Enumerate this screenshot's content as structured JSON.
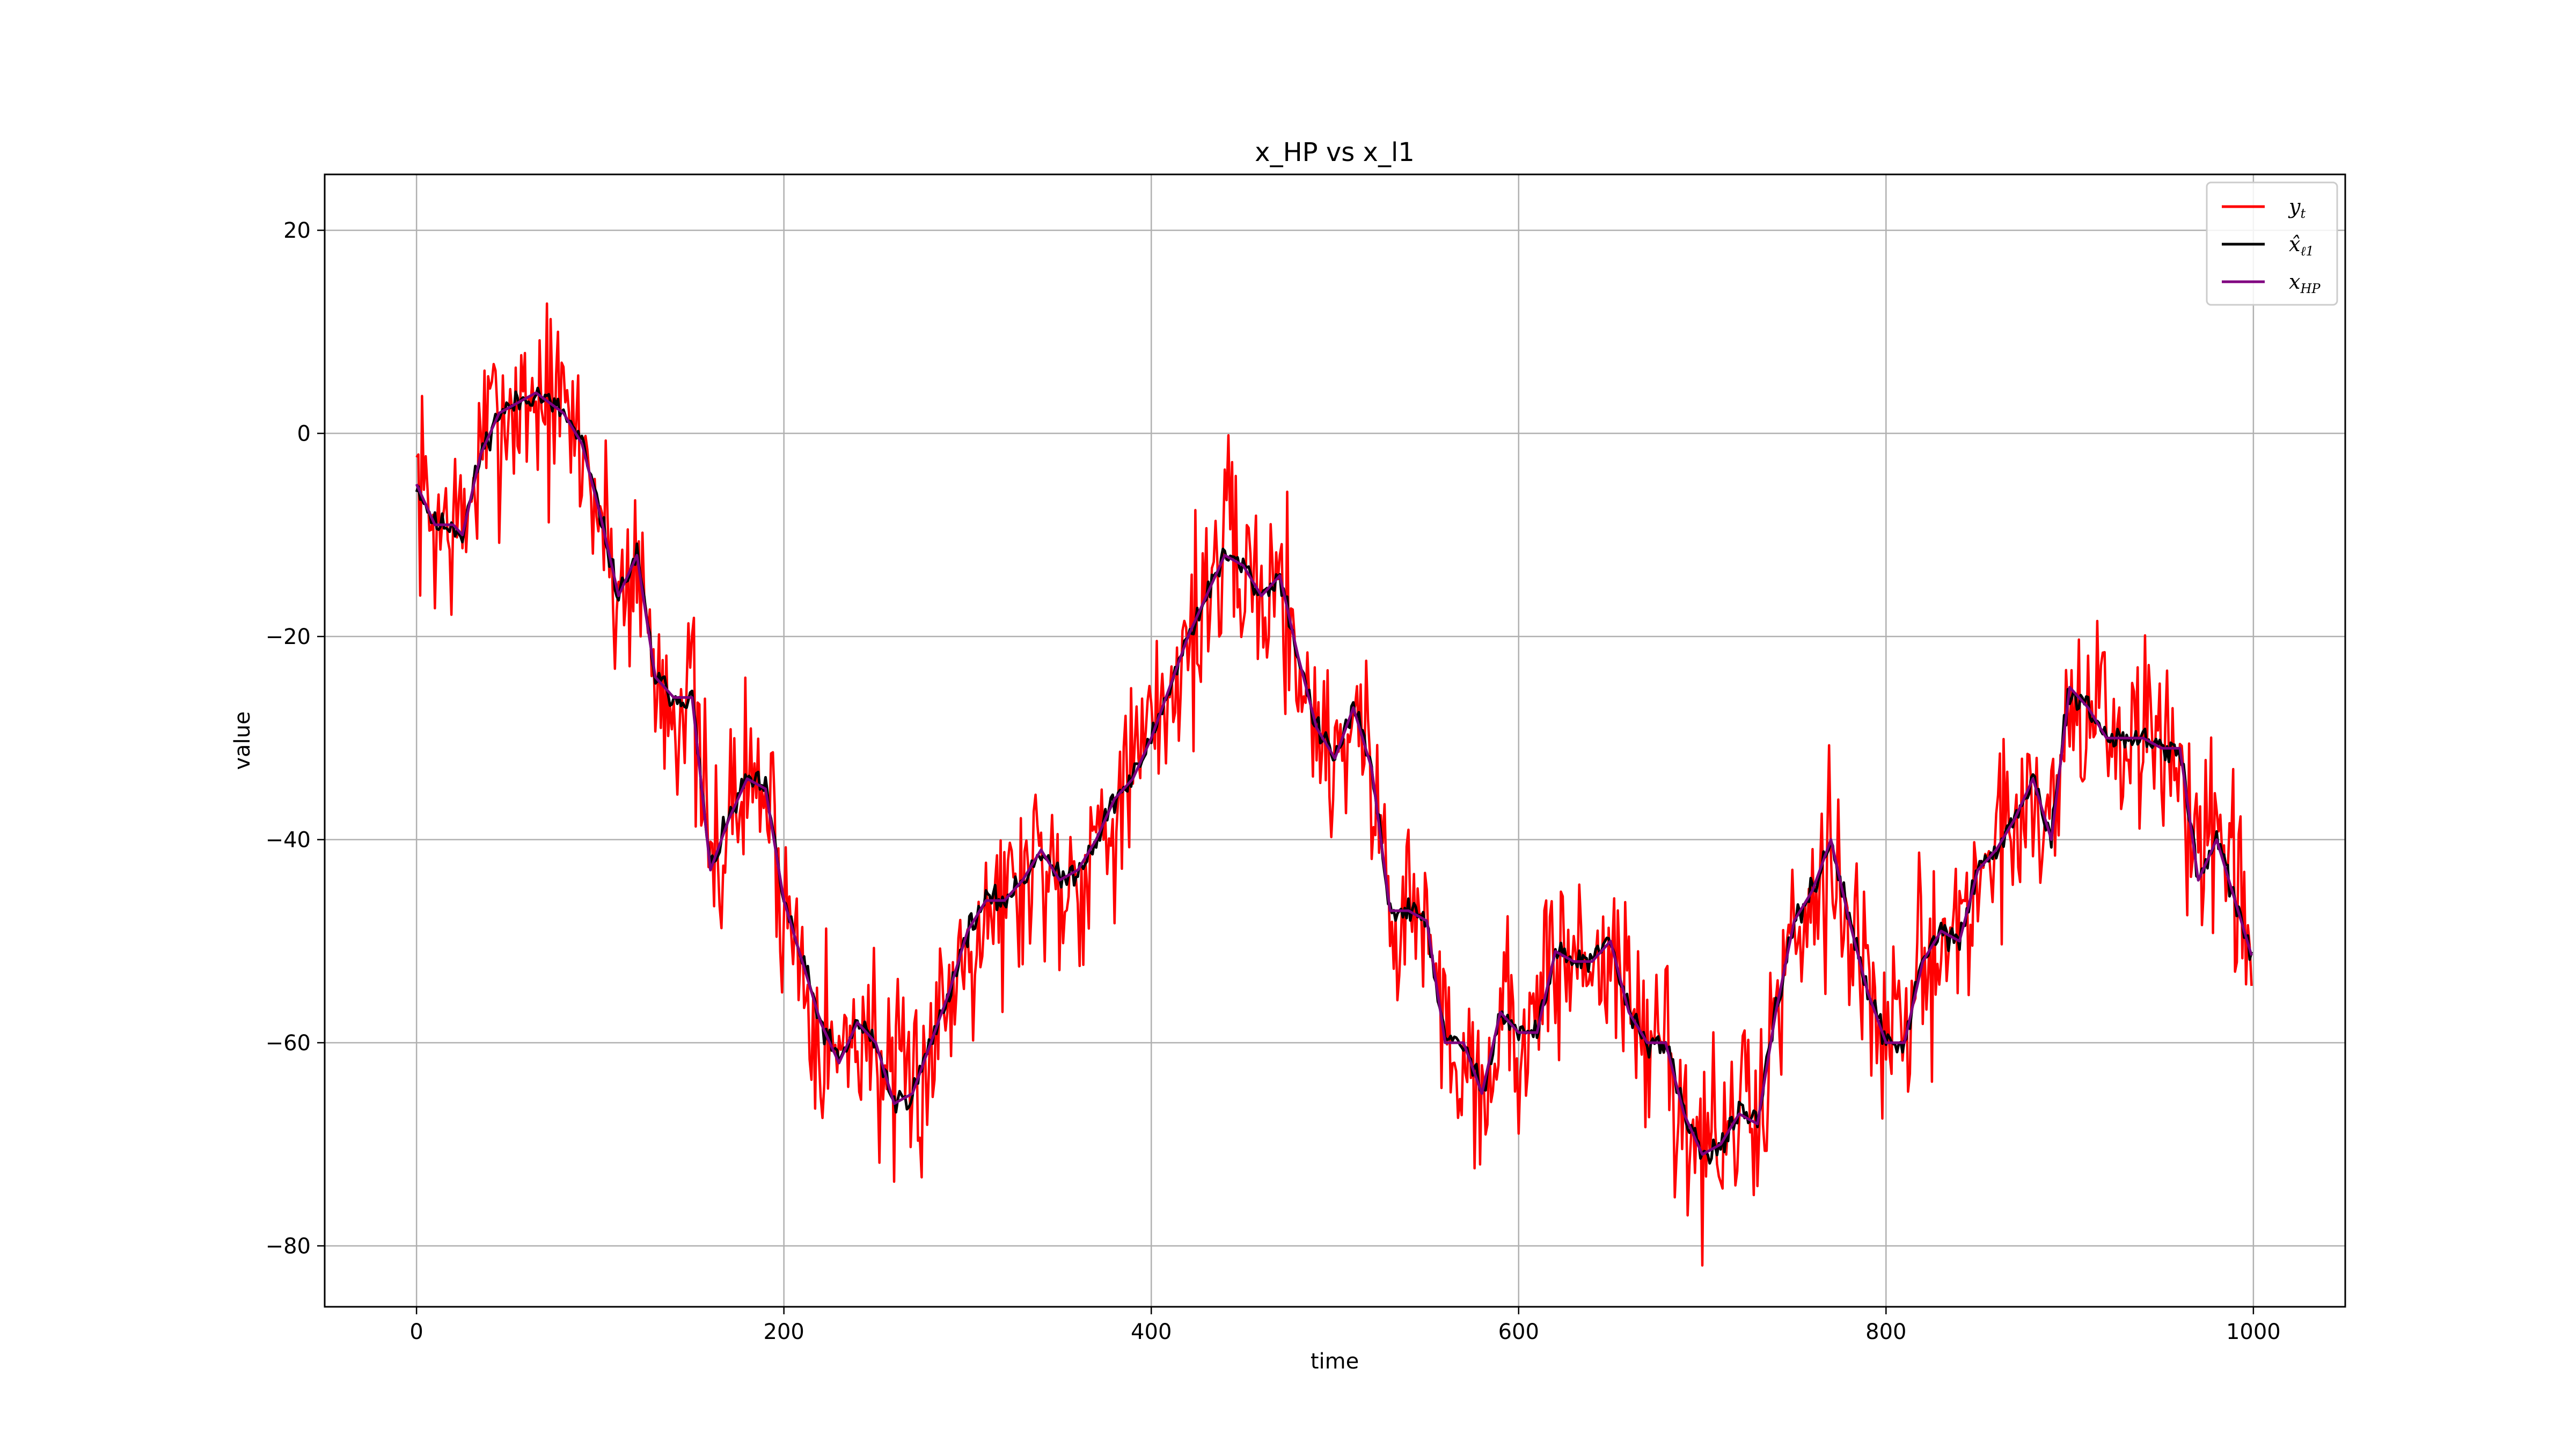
{
  "chart_data": {
    "type": "line",
    "title": "x_HP vs x_l1",
    "xlabel": "time",
    "ylabel": "value",
    "xlim": [
      -50,
      1050
    ],
    "ylim": [
      -86,
      25.5
    ],
    "xticks": [
      0,
      200,
      400,
      600,
      800,
      1000
    ],
    "yticks": [
      -80,
      -60,
      -40,
      -20,
      0,
      20
    ],
    "xtick_labels": [
      "0",
      "200",
      "400",
      "600",
      "800",
      "1000"
    ],
    "ytick_labels": [
      "−80",
      "−60",
      "−40",
      "−20",
      "0",
      "20"
    ],
    "grid": true,
    "legend_position": "top-right",
    "trend_knots": {
      "x": [
        0,
        10,
        20,
        25,
        35,
        45,
        55,
        65,
        80,
        90,
        100,
        110,
        120,
        130,
        140,
        150,
        160,
        170,
        180,
        190,
        200,
        210,
        220,
        230,
        240,
        250,
        260,
        270,
        280,
        290,
        300,
        310,
        320,
        330,
        340,
        350,
        360,
        370,
        380,
        390,
        400,
        410,
        420,
        430,
        440,
        450,
        460,
        470,
        480,
        490,
        500,
        510,
        520,
        530,
        540,
        550,
        560,
        570,
        580,
        590,
        600,
        610,
        620,
        630,
        640,
        650,
        660,
        670,
        680,
        690,
        700,
        710,
        720,
        730,
        740,
        750,
        760,
        770,
        780,
        790,
        800,
        810,
        820,
        830,
        840,
        850,
        860,
        870,
        880,
        890,
        900,
        910,
        920,
        930,
        940,
        950,
        960,
        970,
        980,
        990,
        1000
      ],
      "y": [
        -5,
        -9,
        -9,
        -10,
        -2,
        2,
        3,
        4,
        2,
        -1,
        -8,
        -16,
        -12,
        -24,
        -26,
        -26,
        -43,
        -38,
        -34,
        -35,
        -46,
        -52,
        -58,
        -62,
        -58,
        -60,
        -66,
        -65,
        -60,
        -55,
        -49,
        -46,
        -46,
        -44,
        -41,
        -44,
        -43,
        -40,
        -36,
        -34,
        -30,
        -25,
        -20,
        -16,
        -12,
        -13,
        -16,
        -14,
        -22,
        -29,
        -32,
        -27,
        -33,
        -47,
        -47,
        -48,
        -60,
        -60,
        -65,
        -57,
        -59,
        -59,
        -51,
        -52,
        -52,
        -50,
        -57,
        -60,
        -60,
        -67,
        -71,
        -70,
        -67,
        -68,
        -57,
        -48,
        -45,
        -40,
        -48,
        -55,
        -60,
        -60,
        -52,
        -49,
        -50,
        -43,
        -41,
        -38,
        -34,
        -40,
        -25,
        -27,
        -30,
        -30,
        -30,
        -31,
        -31,
        -44,
        -40,
        -46,
        -52
      ]
    },
    "series": [
      {
        "name": "y_t",
        "color": "#ff0000",
        "noise_amplitude": 5.0,
        "seed": 7
      },
      {
        "name": "x̂_ℓ1",
        "color": "#000000",
        "noise_amplitude": 0.6,
        "seed": 11
      },
      {
        "name": "x_HP",
        "color": "#800080",
        "noise_amplitude": 0.0,
        "seed": 0
      }
    ],
    "n_points": 1000
  },
  "legend": {
    "y_main": "y",
    "y_sub": "t",
    "l1_main": "x̂",
    "l1_sub": "ℓ1",
    "hp_main": "x",
    "hp_sub": "HP"
  }
}
